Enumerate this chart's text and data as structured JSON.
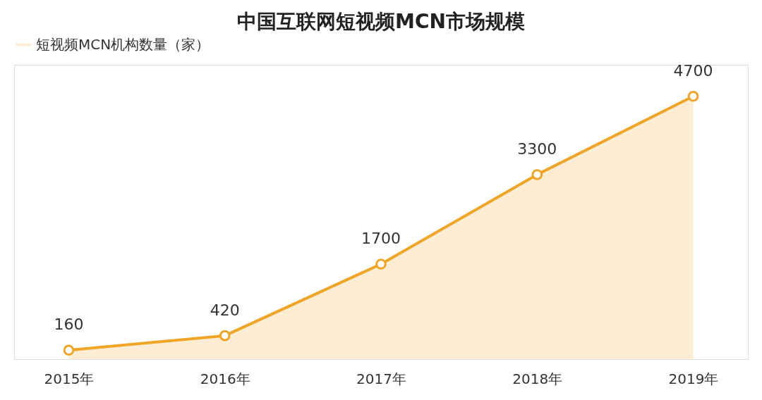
{
  "chart_data": {
    "type": "area",
    "title": "中国互联网短视频MCN市场规模",
    "categories": [
      "2015年",
      "2016年",
      "2017年",
      "2018年",
      "2019年"
    ],
    "series": [
      {
        "name": "短视频MCN机构数量（家）",
        "color": "#f0a526",
        "values": [
          160,
          420,
          1700,
          3300,
          4700
        ]
      }
    ],
    "data_labels": true,
    "marker": "circle",
    "legend": "top",
    "grid": false,
    "tick_labels": "x"
  }
}
